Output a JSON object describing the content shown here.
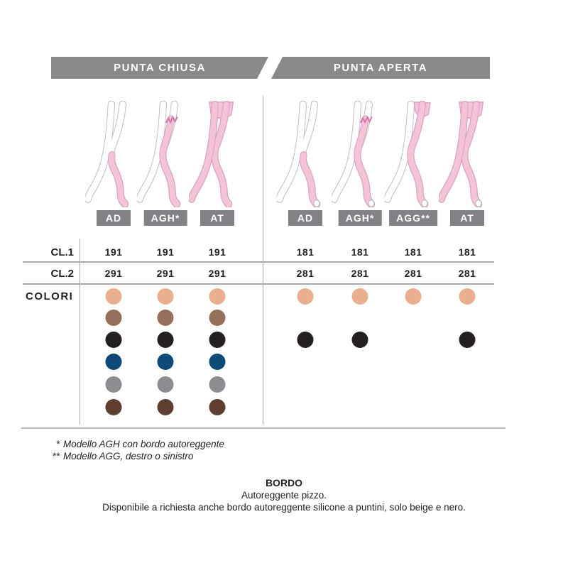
{
  "page": {
    "header": {
      "left_label": "PUNTA CHIUSA",
      "right_label": "PUNTA APERTA"
    },
    "row_labels": {
      "cl1": "CL.1",
      "cl2": "CL.2",
      "colori": "COLORI"
    },
    "palette": {
      "beige": "#eaaf8e",
      "brown": "#966f5a",
      "black": "#242021",
      "navy": "#0d4a78",
      "gray": "#8b8d90",
      "dark_brown": "#5e3e31"
    },
    "sections": [
      {
        "name": "punta-chiusa",
        "columns": [
          {
            "label": "AD",
            "variant": "ad",
            "cl1": "191",
            "cl2": "291",
            "dots": [
              "beige",
              "brown",
              "black",
              "navy",
              "gray",
              "dark_brown"
            ]
          },
          {
            "label": "AGH*",
            "variant": "agh",
            "cl1": "191",
            "cl2": "291",
            "dots": [
              "beige",
              "brown",
              "black",
              "navy",
              "gray",
              "dark_brown"
            ]
          },
          {
            "label": "AT",
            "variant": "at",
            "cl1": "191",
            "cl2": "291",
            "dots": [
              "beige",
              "brown",
              "black",
              "navy",
              "gray",
              "dark_brown"
            ]
          }
        ]
      },
      {
        "name": "punta-aperta",
        "columns": [
          {
            "label": "AD",
            "variant": "ad-open",
            "cl1": "181",
            "cl2": "281",
            "dots": [
              "beige",
              null,
              "black",
              null,
              null,
              null
            ]
          },
          {
            "label": "AGH*",
            "variant": "agh-open",
            "cl1": "181",
            "cl2": "281",
            "dots": [
              "beige",
              null,
              "black",
              null,
              null,
              null
            ]
          },
          {
            "label": "AGG**",
            "variant": "agg-open",
            "cl1": "181",
            "cl2": "281",
            "dots": [
              "beige",
              null,
              null,
              null,
              null,
              null
            ]
          },
          {
            "label": "AT",
            "variant": "at-open",
            "cl1": "181",
            "cl2": "281",
            "dots": [
              "beige",
              null,
              "black",
              null,
              null,
              null
            ]
          }
        ]
      }
    ],
    "footnote_markers": [
      "*",
      "**"
    ],
    "footnotes": [
      "Modello AGH con bordo autoreggente",
      "Modello AGG, destro o sinistro"
    ],
    "bordo": {
      "title": "BORDO",
      "line1": "Autoreggente pizzo.",
      "line2": "Disponibile a richiesta anche bordo autoreggente silicone a puntini, solo beige e nero."
    }
  }
}
